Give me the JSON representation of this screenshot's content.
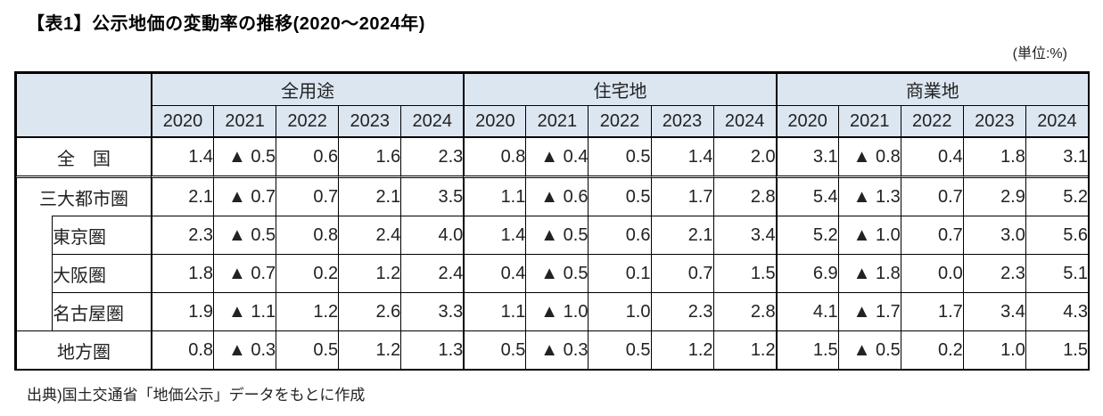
{
  "page": {
    "title": "【表1】公示地価の変動率の推移(2020〜2024年)",
    "unit_note": "(単位:%)",
    "source": "出典)国土交通省「地価公示」データをもとに作成"
  },
  "table": {
    "corner_label": "",
    "column_groups": [
      {
        "label": "全用途",
        "years": [
          "2020",
          "2021",
          "2022",
          "2023",
          "2024"
        ]
      },
      {
        "label": "住宅地",
        "years": [
          "2020",
          "2021",
          "2022",
          "2023",
          "2024"
        ]
      },
      {
        "label": "商業地",
        "years": [
          "2020",
          "2021",
          "2022",
          "2023",
          "2024"
        ]
      }
    ],
    "rows": [
      {
        "label": "全　国",
        "indent": false,
        "groups": [
          {
            "values": [
              "1.4",
              "▲ 0.5",
              "0.6",
              "1.6",
              "2.3"
            ]
          },
          {
            "values": [
              "0.8",
              "▲ 0.4",
              "0.5",
              "1.4",
              "2.0"
            ]
          },
          {
            "values": [
              "3.1",
              "▲ 0.8",
              "0.4",
              "1.8",
              "3.1"
            ]
          }
        ]
      },
      {
        "label": "三大都市圏",
        "indent": false,
        "groups": [
          {
            "values": [
              "2.1",
              "▲ 0.7",
              "0.7",
              "2.1",
              "3.5"
            ]
          },
          {
            "values": [
              "1.1",
              "▲ 0.6",
              "0.5",
              "1.7",
              "2.8"
            ]
          },
          {
            "values": [
              "5.4",
              "▲ 1.3",
              "0.7",
              "2.9",
              "5.2"
            ]
          }
        ]
      },
      {
        "label": "東京圏",
        "indent": true,
        "groups": [
          {
            "values": [
              "2.3",
              "▲ 0.5",
              "0.8",
              "2.4",
              "4.0"
            ]
          },
          {
            "values": [
              "1.4",
              "▲ 0.5",
              "0.6",
              "2.1",
              "3.4"
            ]
          },
          {
            "values": [
              "5.2",
              "▲ 1.0",
              "0.7",
              "3.0",
              "5.6"
            ]
          }
        ]
      },
      {
        "label": "大阪圏",
        "indent": true,
        "groups": [
          {
            "values": [
              "1.8",
              "▲ 0.7",
              "0.2",
              "1.2",
              "2.4"
            ]
          },
          {
            "values": [
              "0.4",
              "▲ 0.5",
              "0.1",
              "0.7",
              "1.5"
            ]
          },
          {
            "values": [
              "6.9",
              "▲ 1.8",
              "0.0",
              "2.3",
              "5.1"
            ]
          }
        ]
      },
      {
        "label": "名古屋圏",
        "indent": true,
        "groups": [
          {
            "values": [
              "1.9",
              "▲ 1.1",
              "1.2",
              "2.6",
              "3.3"
            ]
          },
          {
            "values": [
              "1.1",
              "▲ 1.0",
              "1.0",
              "2.3",
              "2.8"
            ]
          },
          {
            "values": [
              "4.1",
              "▲ 1.7",
              "1.7",
              "3.4",
              "4.3"
            ]
          }
        ]
      },
      {
        "label": "地方圏",
        "indent": false,
        "groups": [
          {
            "values": [
              "0.8",
              "▲ 0.3",
              "0.5",
              "1.2",
              "1.3"
            ]
          },
          {
            "values": [
              "0.5",
              "▲ 0.3",
              "0.5",
              "1.2",
              "1.2"
            ]
          },
          {
            "values": [
              "1.5",
              "▲ 0.5",
              "0.2",
              "1.0",
              "1.5"
            ]
          }
        ]
      }
    ]
  },
  "colors": {
    "header_bg": "#dce6f1",
    "border": "#000000",
    "text": "#222222",
    "negative_marker": "▲"
  }
}
